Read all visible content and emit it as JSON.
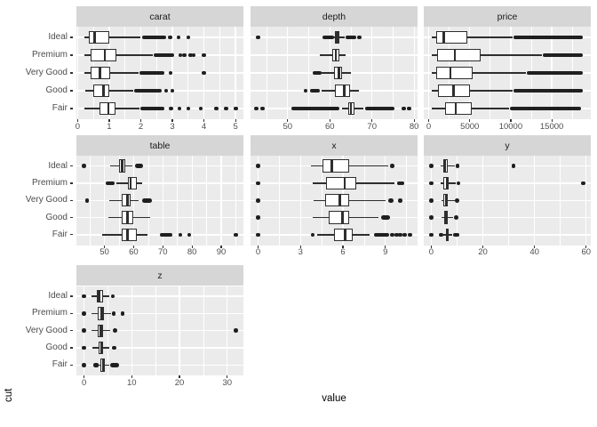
{
  "chart_data": {
    "type": "boxplot",
    "facet": "variable, free x scales, 3 columns",
    "x_title": "value",
    "y_title": "cut",
    "categories": [
      "Ideal",
      "Premium",
      "Very Good",
      "Good",
      "Fair"
    ],
    "colors": {
      "panel_bg": "#EBEBEB",
      "strip_bg": "#D6D6D6",
      "grid": "#FFFFFF",
      "box_stroke": "#2e2e2e",
      "point": "#1f1f1f",
      "tick_label": "#4d4d4d",
      "title": "#000000"
    },
    "panels": [
      {
        "title": "carat",
        "xlim": [
          -0.04,
          5.25
        ],
        "ticks": [
          0,
          1,
          2,
          3,
          4,
          5
        ],
        "rows": [
          {
            "cat": "Ideal",
            "lo": 0.2,
            "q1": 0.35,
            "med": 0.54,
            "q3": 1.01,
            "hi": 2.0,
            "bands": [
              [
                2.03,
                2.8
              ]
            ],
            "dots": [
              2.93,
              3.2,
              3.5
            ]
          },
          {
            "cat": "Premium",
            "lo": 0.2,
            "q1": 0.42,
            "med": 0.86,
            "q3": 1.24,
            "hi": 2.38,
            "bands": [
              [
                2.42,
                3.05
              ]
            ],
            "dots": [
              3.25,
              3.38,
              3.58,
              3.68,
              4.0
            ]
          },
          {
            "cat": "Very Good",
            "lo": 0.2,
            "q1": 0.41,
            "med": 0.71,
            "q3": 1.02,
            "hi": 1.92,
            "bands": [
              [
                1.95,
                2.74
              ]
            ],
            "dots": [
              2.94,
              4.0
            ]
          },
          {
            "cat": "Good",
            "lo": 0.23,
            "q1": 0.5,
            "med": 0.82,
            "q3": 1.01,
            "hi": 1.76,
            "bands": [
              [
                1.8,
                2.66
              ]
            ],
            "dots": [
              2.8,
              3.0
            ]
          },
          {
            "cat": "Fair",
            "lo": 0.22,
            "q1": 0.7,
            "med": 0.97,
            "q3": 1.2,
            "hi": 1.95,
            "bands": [
              [
                2.0,
                2.75
              ]
            ],
            "dots": [
              2.95,
              3.22,
              3.5,
              3.9,
              4.4,
              4.7,
              5.01
            ]
          }
        ]
      },
      {
        "title": "depth",
        "xlim": [
          41.2,
          80.8
        ],
        "ticks": [
          50,
          60,
          70,
          80
        ],
        "rows": [
          {
            "cat": "Ideal",
            "lo": 60.0,
            "q1": 61.3,
            "med": 61.8,
            "q3": 62.2,
            "hi": 63.6,
            "bands": [
              [
                58.2,
                61.0
              ],
              [
                63.7,
                66.3
              ]
            ],
            "dots": [
              43.0,
              67.0
            ]
          },
          {
            "cat": "Premium",
            "lo": 57.6,
            "q1": 60.5,
            "med": 61.4,
            "q3": 62.2,
            "hi": 63.8,
            "bands": [],
            "dots": []
          },
          {
            "cat": "Very Good",
            "lo": 58.1,
            "q1": 60.9,
            "med": 62.1,
            "q3": 62.9,
            "hi": 64.9,
            "bands": [
              [
                56.0,
                58.0
              ]
            ],
            "dots": []
          },
          {
            "cat": "Good",
            "lo": 58.0,
            "q1": 61.3,
            "med": 63.4,
            "q3": 64.7,
            "hi": 66.8,
            "bands": [
              [
                55.3,
                57.7
              ]
            ],
            "dots": [
              54.3
            ]
          },
          {
            "cat": "Fair",
            "lo": 63.0,
            "q1": 64.4,
            "med": 65.0,
            "q3": 65.9,
            "hi": 68.0,
            "bands": [
              [
                50.9,
                62.2
              ],
              [
                68.3,
                75.3
              ]
            ],
            "dots": [
              42.6,
              44.0,
              77.5,
              78.8
            ]
          }
        ]
      },
      {
        "title": "price",
        "xlim": [
          -600,
          19750
        ],
        "ticks": [
          0,
          5000,
          10000,
          15000
        ],
        "rows": [
          {
            "cat": "Ideal",
            "lo": 326,
            "q1": 878,
            "med": 1810,
            "q3": 4678,
            "hi": 10200,
            "bands": [
              [
                10300,
                18800
              ]
            ],
            "dots": []
          },
          {
            "cat": "Premium",
            "lo": 326,
            "q1": 1046,
            "med": 3185,
            "q3": 6296,
            "hi": 13800,
            "bands": [
              [
                13900,
                18820
              ]
            ],
            "dots": []
          },
          {
            "cat": "Very Good",
            "lo": 336,
            "q1": 912,
            "med": 2648,
            "q3": 5373,
            "hi": 11900,
            "bands": [
              [
                11980,
                18820
              ]
            ],
            "dots": []
          },
          {
            "cat": "Good",
            "lo": 327,
            "q1": 1145,
            "med": 3050,
            "q3": 5028,
            "hi": 10200,
            "bands": [
              [
                10300,
                18790
              ]
            ],
            "dots": []
          },
          {
            "cat": "Fair",
            "lo": 337,
            "q1": 2050,
            "med": 3282,
            "q3": 5206,
            "hi": 9800,
            "bands": [
              [
                9900,
                18570
              ]
            ],
            "dots": []
          }
        ]
      },
      {
        "title": "table",
        "xlim": [
          40.4,
          97.6
        ],
        "ticks": [
          50,
          60,
          70,
          80,
          90
        ],
        "rows": [
          {
            "cat": "Ideal",
            "lo": 52.0,
            "q1": 55.0,
            "med": 56.0,
            "q3": 57.0,
            "hi": 59.5,
            "bands": [
              [
                60.6,
                63.2
              ]
            ],
            "dots": [
              43.0
            ]
          },
          {
            "cat": "Premium",
            "lo": 54.2,
            "q1": 58.0,
            "med": 59.0,
            "q3": 61.0,
            "hi": 63.0,
            "bands": [
              [
                50.3,
                53.6
              ]
            ],
            "dots": []
          },
          {
            "cat": "Very Good",
            "lo": 51.6,
            "q1": 56.0,
            "med": 58.0,
            "q3": 59.0,
            "hi": 61.8,
            "bands": [
              [
                63.0,
                66.3
              ]
            ],
            "dots": [
              44.0
            ]
          },
          {
            "cat": "Good",
            "lo": 51.5,
            "q1": 56.0,
            "med": 58.0,
            "q3": 60.0,
            "hi": 65.8,
            "bands": [],
            "dots": []
          },
          {
            "cat": "Fair",
            "lo": 49.3,
            "q1": 56.0,
            "med": 58.0,
            "q3": 61.0,
            "hi": 64.8,
            "bands": [
              [
                68.9,
                73.3
              ]
            ],
            "dots": [
              76.0,
              79.0,
              95.0
            ]
          }
        ]
      },
      {
        "title": "x",
        "xlim": [
          -0.54,
          11.28
        ],
        "ticks": [
          0,
          3,
          6,
          9
        ],
        "rows": [
          {
            "cat": "Ideal",
            "lo": 3.74,
            "q1": 4.54,
            "med": 5.2,
            "q3": 6.44,
            "hi": 9.2,
            "bands": [],
            "dots": [
              0,
              9.5
            ]
          },
          {
            "cat": "Premium",
            "lo": 3.86,
            "q1": 4.8,
            "med": 6.12,
            "q3": 6.97,
            "hi": 9.65,
            "bands": [],
            "dots": [
              0,
              10.0,
              10.18
            ]
          },
          {
            "cat": "Very Good",
            "lo": 3.9,
            "q1": 4.75,
            "med": 5.76,
            "q3": 6.45,
            "hi": 9.0,
            "bands": [
              [
                9.2,
                9.6
              ]
            ],
            "dots": [
              0,
              10.04
            ]
          },
          {
            "cat": "Good",
            "lo": 3.85,
            "q1": 5.0,
            "med": 5.98,
            "q3": 6.42,
            "hi": 8.5,
            "bands": [
              [
                8.68,
                9.3
              ]
            ],
            "dots": [
              0
            ]
          },
          {
            "cat": "Fair",
            "lo": 4.2,
            "q1": 5.35,
            "med": 6.17,
            "q3": 6.7,
            "hi": 7.9,
            "bands": [
              [
                8.2,
                9.25
              ]
            ],
            "dots": [
              0,
              3.87,
              9.5,
              9.8,
              10.05,
              10.35,
              10.74
            ]
          }
        ]
      },
      {
        "title": "y",
        "xlim": [
          -2.9,
          61.8
        ],
        "ticks": [
          0,
          20,
          40,
          60
        ],
        "rows": [
          {
            "cat": "Ideal",
            "lo": 3.7,
            "q1": 4.56,
            "med": 5.26,
            "q3": 6.44,
            "hi": 9.2,
            "bands": [
              [
                9.35,
                10.15
              ]
            ],
            "dots": [
              0,
              31.8
            ]
          },
          {
            "cat": "Premium",
            "lo": 3.8,
            "q1": 4.79,
            "med": 6.03,
            "q3": 6.81,
            "hi": 9.6,
            "bands": [
              [
                9.8,
                10.7
              ]
            ],
            "dots": [
              0,
              58.9
            ]
          },
          {
            "cat": "Very Good",
            "lo": 3.85,
            "q1": 4.77,
            "med": 5.77,
            "q3": 6.51,
            "hi": 9.1,
            "bands": [
              [
                9.25,
                10.0
              ]
            ],
            "dots": [
              0
            ]
          },
          {
            "cat": "Good",
            "lo": 3.85,
            "q1": 5.02,
            "med": 5.99,
            "q3": 6.44,
            "hi": 8.6,
            "bands": [
              [
                8.8,
                10.45
              ]
            ],
            "dots": [
              0
            ]
          },
          {
            "cat": "Fair",
            "lo": 4.6,
            "q1": 5.57,
            "med": 6.1,
            "q3": 6.64,
            "hi": 8.2,
            "bands": [
              [
                8.35,
                10.9
              ]
            ],
            "dots": [
              0,
              3.9
            ]
          }
        ]
      },
      {
        "title": "z",
        "xlim": [
          -1.6,
          33.4
        ],
        "ticks": [
          0,
          10,
          20,
          30
        ],
        "rows": [
          {
            "cat": "Ideal",
            "lo": 1.5,
            "q1": 2.7,
            "med": 3.21,
            "q3": 3.95,
            "hi": 5.3,
            "bands": [],
            "dots": [
              0,
              6.0
            ]
          },
          {
            "cat": "Premium",
            "lo": 1.55,
            "q1": 2.9,
            "med": 3.7,
            "q3": 4.15,
            "hi": 5.6,
            "bands": [],
            "dots": [
              0,
              6.25,
              8.1
            ]
          },
          {
            "cat": "Very Good",
            "lo": 1.6,
            "q1": 2.9,
            "med": 3.55,
            "q3": 4.0,
            "hi": 5.5,
            "bands": [
              [
                6.05,
                6.6
              ]
            ],
            "dots": [
              0,
              31.8
            ]
          },
          {
            "cat": "Good",
            "lo": 1.7,
            "q1": 3.0,
            "med": 3.7,
            "q3": 3.95,
            "hi": 5.3,
            "bands": [
              [
                5.85,
                6.4
              ]
            ],
            "dots": [
              0
            ]
          },
          {
            "cat": "Fair",
            "lo": 3.1,
            "q1": 3.45,
            "med": 3.97,
            "q3": 4.28,
            "hi": 5.2,
            "bands": [
              [
                5.45,
                7.4
              ]
            ],
            "dots": [
              0,
              2.45,
              2.7
            ]
          }
        ]
      }
    ]
  }
}
